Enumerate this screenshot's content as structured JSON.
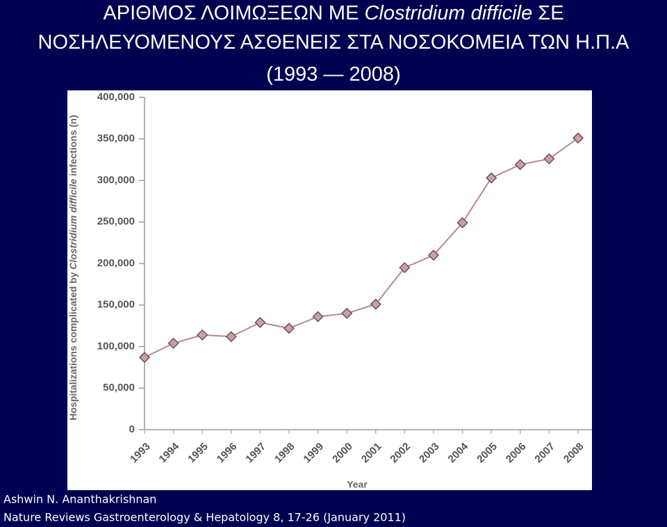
{
  "slide": {
    "title_lines": [
      [
        "ΑΡΙΘΜΟΣ ΛΟΙΜΩΞΕΩΝ ΜΕ ",
        "Clostridium difficile",
        " ΣΕ"
      ],
      [
        "ΝΟΣΗΛΕΥΟΜΕΝΟΥΣ ΑΣΘΕΝΕΙΣ ΣΤΑ ΝΟΣΟΚΟΜΕΙΑ ΤΩΝ Η.Π.Α"
      ],
      [
        "(1993 — 2008)"
      ]
    ],
    "credits": [
      "Ashwin N. Ananthakrishnan",
      "Nature Reviews Gastroenterology & Hepatology 8, 17-26 (January 2011)"
    ]
  },
  "chart_data": {
    "type": "line",
    "xlabel": "Year",
    "ylabel": [
      "Hospitalizations complicated by ",
      "Clostridium difficile",
      " infections (n)"
    ],
    "categories": [
      "1993",
      "1994",
      "1995",
      "1996",
      "1997",
      "1998",
      "1999",
      "2000",
      "2001",
      "2002",
      "2003",
      "2004",
      "2005",
      "2006",
      "2007",
      "2008"
    ],
    "values": [
      87000,
      104000,
      114000,
      112000,
      129000,
      122000,
      136000,
      140000,
      151000,
      195000,
      210000,
      249000,
      303000,
      319000,
      326000,
      351000
    ],
    "color": "#b48a8e",
    "marker_color": "#c9a0a5",
    "ylim": [
      0,
      400000
    ],
    "yticks": [
      0,
      {
        "value": 50000,
        "label": "50,000"
      },
      {
        "value": 100000,
        "label": "100,000"
      },
      {
        "value": 150000,
        "label": "150,000"
      },
      {
        "value": 200000,
        "label": "200,000"
      },
      {
        "value": 250000,
        "label": "250,000"
      },
      {
        "value": 300000,
        "label": "300,000"
      },
      {
        "value": 350000,
        "label": "350,000"
      },
      {
        "value": 400000,
        "label": "400,000"
      }
    ]
  }
}
